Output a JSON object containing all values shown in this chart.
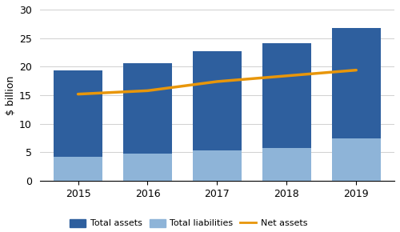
{
  "years": [
    "2015",
    "2016",
    "2017",
    "2018",
    "2019"
  ],
  "total_assets": [
    19.4,
    20.6,
    22.7,
    24.1,
    26.8
  ],
  "total_liabilities": [
    4.2,
    4.8,
    5.3,
    5.7,
    7.4
  ],
  "net_assets": [
    15.2,
    15.8,
    17.4,
    18.4,
    19.4
  ],
  "bar_color_assets": "#2e5f9e",
  "bar_color_liabilities": "#8eb4d8",
  "line_color": "#e8960a",
  "ylabel": "$ billion",
  "ylim": [
    0,
    30
  ],
  "yticks": [
    0,
    5,
    10,
    15,
    20,
    25,
    30
  ],
  "legend_labels": [
    "Total assets",
    "Total liabilities",
    "Net assets"
  ],
  "bar_width": 0.35,
  "background_color": "#ffffff",
  "grid_color": "#d0d0d0"
}
